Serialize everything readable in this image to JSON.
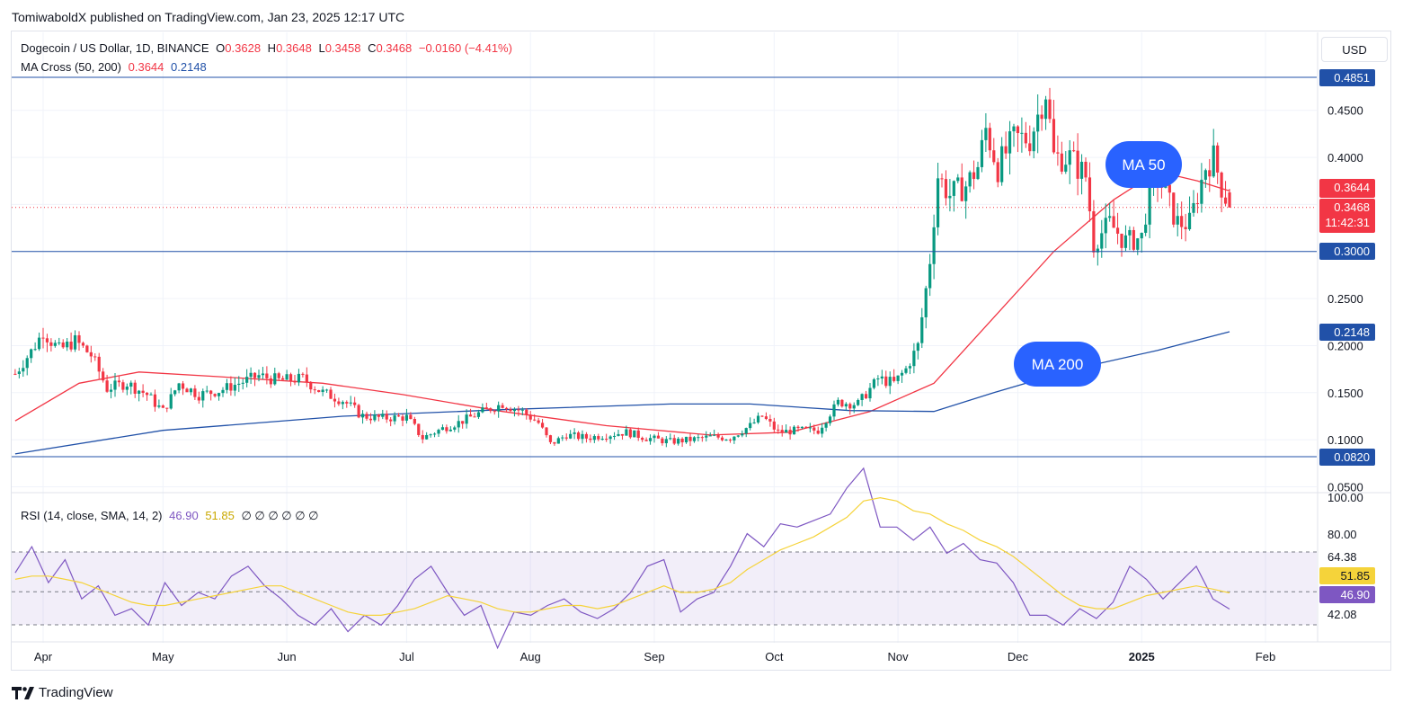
{
  "header": {
    "publisher": "TomiwaboldX published on TradingView.com, Jan 23, 2025 12:17 UTC"
  },
  "legend": {
    "symbol": "Dogecoin / US Dollar, 1D, BINANCE",
    "o_label": "O",
    "o": "0.3628",
    "h_label": "H",
    "h": "0.3648",
    "l_label": "L",
    "l": "0.3458",
    "c_label": "C",
    "c": "0.3468",
    "change": "−0.0160 (−4.41%)",
    "ma_label": "MA Cross (50, 200)",
    "ma50": "0.3644",
    "ma200": "0.2148",
    "rsi_label": "RSI (14, close, SMA, 14, 2)",
    "rsi": "46.90",
    "rsi_ma": "51.85",
    "rsi_na": "∅ ∅ ∅ ∅ ∅ ∅"
  },
  "currency": "USD",
  "annotations": {
    "ma50": "MA 50",
    "ma200": "MA 200"
  },
  "price_badges": {
    "top_line": "0.4851",
    "ma50": "0.3644",
    "last": "0.3468",
    "countdown": "11:42:31",
    "mid_line": "0.3000",
    "ma200": "0.2148",
    "bottom_line": "0.0820"
  },
  "rsi_badges": {
    "upper": "64.38",
    "ma": "51.85",
    "value": "46.90",
    "lower": "42.08"
  },
  "footer": {
    "brand": "TradingView"
  },
  "colors": {
    "up": "#089981",
    "down": "#f23645",
    "ma50": "#f23645",
    "ma200": "#2151a8",
    "rsi": "#7e57c2",
    "rsi_ma": "#f5d33a",
    "line": "#2151a8",
    "badge_blue": "#2962ff"
  },
  "chart_data": {
    "type": "candlestick",
    "price_axis": {
      "ticks": [
        "0.4500",
        "0.4000",
        "0.3500",
        "0.3000",
        "0.2500",
        "0.2000",
        "0.1500",
        "0.1000",
        "0.0500"
      ],
      "ylim": [
        0.045,
        0.49
      ]
    },
    "x_ticks": [
      "Apr",
      "May",
      "Jun",
      "Jul",
      "Aug",
      "Sep",
      "Oct",
      "Nov",
      "Dec",
      "2025",
      "Feb"
    ],
    "horizontal_lines": [
      0.4851,
      0.3,
      0.082
    ],
    "close_series": [
      {
        "date": "Mar-25",
        "value": 0.17
      },
      {
        "date": "Mar-30",
        "value": 0.2
      },
      {
        "date": "Apr-01",
        "value": 0.215
      },
      {
        "date": "Apr-05",
        "value": 0.195
      },
      {
        "date": "Apr-09",
        "value": 0.205
      },
      {
        "date": "Apr-13",
        "value": 0.19
      },
      {
        "date": "Apr-17",
        "value": 0.155
      },
      {
        "date": "Apr-22",
        "value": 0.16
      },
      {
        "date": "Apr-27",
        "value": 0.148
      },
      {
        "date": "May-01",
        "value": 0.13
      },
      {
        "date": "May-05",
        "value": 0.16
      },
      {
        "date": "May-10",
        "value": 0.148
      },
      {
        "date": "May-15",
        "value": 0.152
      },
      {
        "date": "May-20",
        "value": 0.16
      },
      {
        "date": "May-25",
        "value": 0.168
      },
      {
        "date": "May-30",
        "value": 0.163
      },
      {
        "date": "Jun-05",
        "value": 0.165
      },
      {
        "date": "Jun-10",
        "value": 0.15
      },
      {
        "date": "Jun-15",
        "value": 0.142
      },
      {
        "date": "Jun-20",
        "value": 0.125
      },
      {
        "date": "Jun-25",
        "value": 0.123
      },
      {
        "date": "Jul-01",
        "value": 0.124
      },
      {
        "date": "Jul-05",
        "value": 0.102
      },
      {
        "date": "Jul-10",
        "value": 0.112
      },
      {
        "date": "Jul-15",
        "value": 0.12
      },
      {
        "date": "Jul-20",
        "value": 0.13
      },
      {
        "date": "Jul-25",
        "value": 0.138
      },
      {
        "date": "Jul-30",
        "value": 0.13
      },
      {
        "date": "Aug-03",
        "value": 0.118
      },
      {
        "date": "Aug-06",
        "value": 0.095
      },
      {
        "date": "Aug-10",
        "value": 0.105
      },
      {
        "date": "Aug-15",
        "value": 0.102
      },
      {
        "date": "Aug-20",
        "value": 0.105
      },
      {
        "date": "Aug-25",
        "value": 0.108
      },
      {
        "date": "Aug-30",
        "value": 0.102
      },
      {
        "date": "Sep-05",
        "value": 0.098
      },
      {
        "date": "Sep-10",
        "value": 0.1
      },
      {
        "date": "Sep-15",
        "value": 0.103
      },
      {
        "date": "Sep-20",
        "value": 0.102
      },
      {
        "date": "Sep-25",
        "value": 0.115
      },
      {
        "date": "Sep-28",
        "value": 0.125
      },
      {
        "date": "Oct-02",
        "value": 0.108
      },
      {
        "date": "Oct-07",
        "value": 0.11
      },
      {
        "date": "Oct-12",
        "value": 0.11
      },
      {
        "date": "Oct-17",
        "value": 0.14
      },
      {
        "date": "Oct-22",
        "value": 0.138
      },
      {
        "date": "Oct-27",
        "value": 0.165
      },
      {
        "date": "Oct-31",
        "value": 0.16
      },
      {
        "date": "Nov-03",
        "value": 0.175
      },
      {
        "date": "Nov-06",
        "value": 0.2
      },
      {
        "date": "Nov-09",
        "value": 0.29
      },
      {
        "date": "Nov-11",
        "value": 0.38
      },
      {
        "date": "Nov-14",
        "value": 0.36
      },
      {
        "date": "Nov-18",
        "value": 0.37
      },
      {
        "date": "Nov-21",
        "value": 0.39
      },
      {
        "date": "Nov-23",
        "value": 0.43
      },
      {
        "date": "Nov-26",
        "value": 0.39
      },
      {
        "date": "Nov-30",
        "value": 0.42
      },
      {
        "date": "Dec-04",
        "value": 0.42
      },
      {
        "date": "Dec-08",
        "value": 0.47
      },
      {
        "date": "Dec-10",
        "value": 0.4
      },
      {
        "date": "Dec-14",
        "value": 0.4
      },
      {
        "date": "Dec-18",
        "value": 0.38
      },
      {
        "date": "Dec-20",
        "value": 0.31
      },
      {
        "date": "Dec-24",
        "value": 0.33
      },
      {
        "date": "Dec-28",
        "value": 0.31
      },
      {
        "date": "Jan-01",
        "value": 0.315
      },
      {
        "date": "Jan-04",
        "value": 0.39
      },
      {
        "date": "Jan-07",
        "value": 0.36
      },
      {
        "date": "Jan-10",
        "value": 0.33
      },
      {
        "date": "Jan-13",
        "value": 0.33
      },
      {
        "date": "Jan-17",
        "value": 0.39
      },
      {
        "date": "Jan-19",
        "value": 0.4
      },
      {
        "date": "Jan-21",
        "value": 0.37
      },
      {
        "date": "Jan-23",
        "value": 0.3468
      }
    ],
    "series": [
      {
        "name": "MA 50",
        "values": [
          {
            "date": "Mar-25",
            "value": 0.12
          },
          {
            "date": "Apr-10",
            "value": 0.16
          },
          {
            "date": "Apr-25",
            "value": 0.172
          },
          {
            "date": "May-15",
            "value": 0.167
          },
          {
            "date": "Jun-10",
            "value": 0.16
          },
          {
            "date": "Jun-30",
            "value": 0.148
          },
          {
            "date": "Jul-25",
            "value": 0.13
          },
          {
            "date": "Aug-20",
            "value": 0.115
          },
          {
            "date": "Sep-15",
            "value": 0.105
          },
          {
            "date": "Oct-05",
            "value": 0.108
          },
          {
            "date": "Oct-25",
            "value": 0.13
          },
          {
            "date": "Nov-10",
            "value": 0.16
          },
          {
            "date": "Nov-25",
            "value": 0.23
          },
          {
            "date": "Dec-10",
            "value": 0.3
          },
          {
            "date": "Dec-25",
            "value": 0.355
          },
          {
            "date": "Jan-05",
            "value": 0.385
          },
          {
            "date": "Jan-15",
            "value": 0.375
          },
          {
            "date": "Jan-23",
            "value": 0.3644
          }
        ]
      },
      {
        "name": "MA 200",
        "values": [
          {
            "date": "Mar-25",
            "value": 0.085
          },
          {
            "date": "May-01",
            "value": 0.11
          },
          {
            "date": "Jun-15",
            "value": 0.125
          },
          {
            "date": "Jul-25",
            "value": 0.132
          },
          {
            "date": "Sep-05",
            "value": 0.138
          },
          {
            "date": "Sep-25",
            "value": 0.138
          },
          {
            "date": "Oct-20",
            "value": 0.131
          },
          {
            "date": "Nov-10",
            "value": 0.13
          },
          {
            "date": "Nov-25",
            "value": 0.15
          },
          {
            "date": "Dec-15",
            "value": 0.175
          },
          {
            "date": "Jan-05",
            "value": 0.195
          },
          {
            "date": "Jan-23",
            "value": 0.2148
          }
        ]
      }
    ],
    "rsi": {
      "ylim": [
        30,
        100
      ],
      "ticks": [
        "100.00",
        "80.00"
      ],
      "bands": [
        64.38,
        42.08
      ],
      "series": [
        {
          "name": "RSI",
          "values": [
            58,
            66,
            55,
            62,
            50,
            54,
            45,
            47,
            42,
            55,
            48,
            52,
            50,
            57,
            60,
            54,
            50,
            45,
            42,
            47,
            40,
            45,
            42,
            48,
            56,
            60,
            52,
            45,
            48,
            35,
            46,
            45,
            48,
            50,
            46,
            44,
            47,
            52,
            60,
            62,
            46,
            50,
            52,
            60,
            70,
            66,
            73,
            72,
            74,
            76,
            84,
            90,
            72,
            72,
            68,
            72,
            64,
            67,
            62,
            61,
            55,
            45,
            45,
            42,
            47,
            44,
            49,
            60,
            56,
            50,
            55,
            60,
            50,
            46.9
          ]
        },
        {
          "name": "RSI MA",
          "values": [
            56,
            57,
            57,
            56,
            55,
            53,
            51,
            49,
            48,
            48,
            49,
            50,
            51,
            52,
            53,
            54,
            54,
            52,
            50,
            48,
            46,
            45,
            45,
            46,
            47,
            49,
            51,
            50,
            49,
            47,
            46,
            46,
            47,
            48,
            48,
            47,
            48,
            50,
            52,
            54,
            52,
            52,
            53,
            55,
            59,
            62,
            65,
            67,
            69,
            72,
            75,
            80,
            81,
            80,
            77,
            76,
            73,
            71,
            68,
            66,
            63,
            59,
            55,
            51,
            48,
            47,
            47,
            49,
            51,
            52,
            53,
            54,
            53,
            51.85
          ]
        }
      ]
    }
  }
}
